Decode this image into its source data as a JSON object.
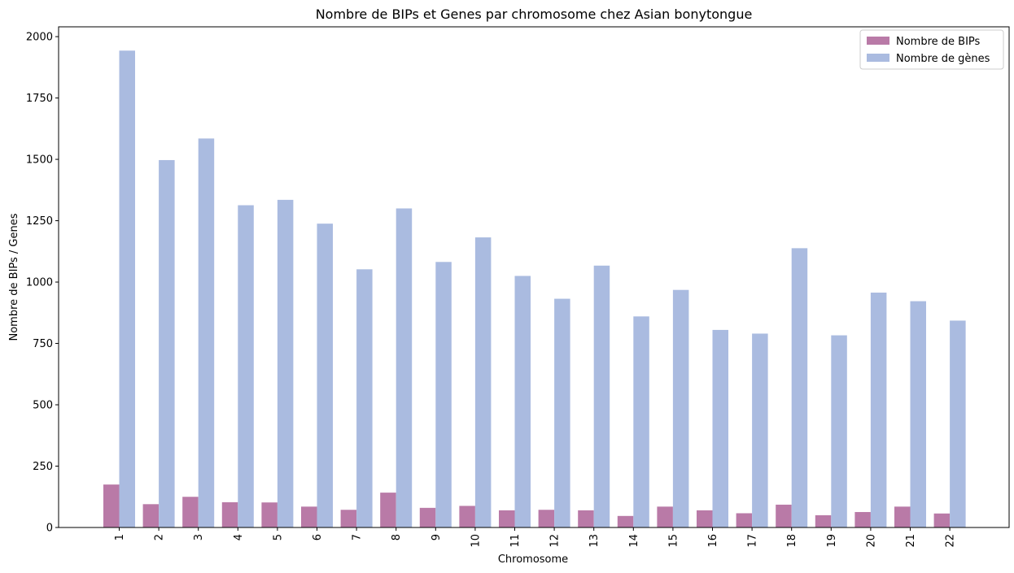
{
  "chart_data": {
    "type": "bar",
    "title": "Nombre de BIPs et Genes par chromosome chez Asian bonytongue",
    "xlabel": "Chromosome",
    "ylabel": "Nombre de BIPs / Genes",
    "ylim": [
      0,
      2040
    ],
    "yticks": [
      0,
      250,
      500,
      750,
      1000,
      1250,
      1500,
      1750,
      2000
    ],
    "categories": [
      "1",
      "2",
      "3",
      "4",
      "5",
      "6",
      "7",
      "8",
      "9",
      "10",
      "11",
      "12",
      "13",
      "14",
      "15",
      "16",
      "17",
      "18",
      "19",
      "20",
      "21",
      "22"
    ],
    "series": [
      {
        "name": "Nombre de BIPs",
        "color": "#b97aa7",
        "values": [
          175,
          95,
          125,
          103,
          102,
          85,
          72,
          142,
          80,
          88,
          70,
          72,
          70,
          47,
          85,
          70,
          58,
          93,
          50,
          63,
          85,
          57
        ]
      },
      {
        "name": "Nombre de gènes",
        "color": "#aabbe0",
        "values": [
          1943,
          1497,
          1585,
          1313,
          1335,
          1238,
          1052,
          1300,
          1082,
          1182,
          1025,
          932,
          1067,
          860,
          968,
          805,
          790,
          1138,
          783,
          957,
          922,
          843
        ]
      }
    ],
    "legend": "top-right",
    "grid": false
  }
}
